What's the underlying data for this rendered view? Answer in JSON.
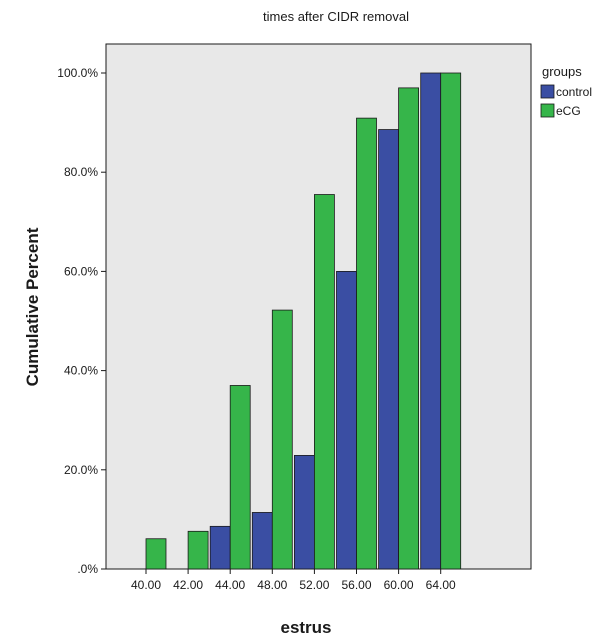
{
  "chart_data": {
    "type": "bar",
    "title": "times after CIDR removal",
    "xlabel": "estrus",
    "ylabel": "Cumulative Percent",
    "categories": [
      "40.00",
      "42.00",
      "44.00",
      "48.00",
      "52.00",
      "56.00",
      "60.00",
      "64.00"
    ],
    "series": [
      {
        "name": "control",
        "color": "#3a4ea3",
        "values": [
          null,
          null,
          8.6,
          11.4,
          22.9,
          60.0,
          88.6,
          100.0
        ]
      },
      {
        "name": "eCG",
        "color": "#36b54a",
        "values": [
          6.1,
          7.6,
          37.0,
          52.2,
          75.5,
          90.9,
          97.0,
          100.0
        ]
      }
    ],
    "ylim": [
      0,
      100
    ],
    "yticks": [
      0,
      20,
      40,
      60,
      80,
      100
    ],
    "ytick_labels": [
      ".0%",
      "20.0%",
      "40.0%",
      "60.0%",
      "80.0%",
      "100.0%"
    ],
    "grid": false,
    "plot_background": "#e8e8e8",
    "legend": {
      "title": "groups",
      "placement": "right"
    }
  }
}
